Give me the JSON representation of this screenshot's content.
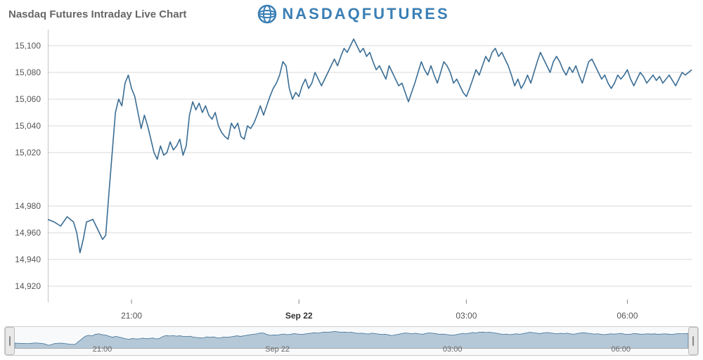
{
  "header": {
    "title": "Nasdaq Futures Intraday Live Chart",
    "brand": "NASDAQFUTURES",
    "brand_color": "#3a7fb5"
  },
  "chart": {
    "type": "line",
    "line_color": "#3a6d94",
    "line_width": 1.6,
    "background_color": "#ffffff",
    "grid_color": "#d9d9d9",
    "axis_color": "#888888",
    "label_color": "#555555",
    "label_fontsize": 12,
    "ylim": [
      14910,
      15110
    ],
    "yticks": [
      14920,
      14940,
      14960,
      14980,
      15020,
      15040,
      15060,
      15080,
      15100
    ],
    "ytick_labels": [
      "14,920",
      "14,940",
      "14,960",
      "14,980",
      "15,020",
      "15,040",
      "15,060",
      "15,080",
      "15,100"
    ],
    "xlim": [
      0,
      100
    ],
    "xticks": [
      13,
      39,
      65,
      90
    ],
    "xtick_labels": [
      "21:00",
      "Sep 22",
      "03:00",
      "06:00"
    ],
    "xtick_bold": [
      false,
      true,
      false,
      false
    ],
    "series": [
      [
        0,
        14970
      ],
      [
        1,
        14968
      ],
      [
        2,
        14965
      ],
      [
        3,
        14972
      ],
      [
        4,
        14968
      ],
      [
        4.5,
        14960
      ],
      [
        5,
        14945
      ],
      [
        5.5,
        14955
      ],
      [
        6,
        14968
      ],
      [
        7,
        14970
      ],
      [
        7.5,
        14965
      ],
      [
        8,
        14960
      ],
      [
        8.5,
        14955
      ],
      [
        9,
        14958
      ],
      [
        9.5,
        14990
      ],
      [
        10,
        15020
      ],
      [
        10.5,
        15050
      ],
      [
        11,
        15060
      ],
      [
        11.5,
        15055
      ],
      [
        12,
        15072
      ],
      [
        12.5,
        15078
      ],
      [
        13,
        15068
      ],
      [
        13.5,
        15062
      ],
      [
        14,
        15050
      ],
      [
        14.5,
        15038
      ],
      [
        15,
        15048
      ],
      [
        15.5,
        15040
      ],
      [
        16,
        15030
      ],
      [
        16.5,
        15020
      ],
      [
        17,
        15015
      ],
      [
        17.5,
        15025
      ],
      [
        18,
        15018
      ],
      [
        18.5,
        15020
      ],
      [
        19,
        15028
      ],
      [
        19.5,
        15022
      ],
      [
        20,
        15025
      ],
      [
        20.5,
        15030
      ],
      [
        21,
        15018
      ],
      [
        21.5,
        15025
      ],
      [
        22,
        15048
      ],
      [
        22.5,
        15058
      ],
      [
        23,
        15052
      ],
      [
        23.5,
        15057
      ],
      [
        24,
        15050
      ],
      [
        24.5,
        15055
      ],
      [
        25,
        15048
      ],
      [
        25.5,
        15045
      ],
      [
        26,
        15050
      ],
      [
        26.5,
        15040
      ],
      [
        27,
        15035
      ],
      [
        27.5,
        15032
      ],
      [
        28,
        15030
      ],
      [
        28.5,
        15042
      ],
      [
        29,
        15038
      ],
      [
        29.5,
        15042
      ],
      [
        30,
        15032
      ],
      [
        30.5,
        15030
      ],
      [
        31,
        15040
      ],
      [
        31.5,
        15038
      ],
      [
        32,
        15042
      ],
      [
        32.5,
        15048
      ],
      [
        33,
        15055
      ],
      [
        33.5,
        15048
      ],
      [
        34,
        15055
      ],
      [
        34.5,
        15062
      ],
      [
        35,
        15068
      ],
      [
        35.5,
        15072
      ],
      [
        36,
        15078
      ],
      [
        36.5,
        15088
      ],
      [
        37,
        15085
      ],
      [
        37.5,
        15068
      ],
      [
        38,
        15060
      ],
      [
        38.5,
        15065
      ],
      [
        39,
        15062
      ],
      [
        39.5,
        15070
      ],
      [
        40,
        15075
      ],
      [
        40.5,
        15068
      ],
      [
        41,
        15072
      ],
      [
        41.5,
        15080
      ],
      [
        42,
        15075
      ],
      [
        42.5,
        15070
      ],
      [
        43,
        15075
      ],
      [
        43.5,
        15080
      ],
      [
        44,
        15085
      ],
      [
        44.5,
        15090
      ],
      [
        45,
        15085
      ],
      [
        45.5,
        15092
      ],
      [
        46,
        15098
      ],
      [
        46.5,
        15095
      ],
      [
        47,
        15100
      ],
      [
        47.5,
        15105
      ],
      [
        48,
        15100
      ],
      [
        48.5,
        15095
      ],
      [
        49,
        15098
      ],
      [
        49.5,
        15092
      ],
      [
        50,
        15095
      ],
      [
        50.5,
        15088
      ],
      [
        51,
        15082
      ],
      [
        51.5,
        15085
      ],
      [
        52,
        15080
      ],
      [
        52.5,
        15075
      ],
      [
        53,
        15085
      ],
      [
        53.5,
        15080
      ],
      [
        54,
        15075
      ],
      [
        54.5,
        15070
      ],
      [
        55,
        15072
      ],
      [
        55.5,
        15065
      ],
      [
        56,
        15058
      ],
      [
        56.5,
        15065
      ],
      [
        57,
        15072
      ],
      [
        57.5,
        15080
      ],
      [
        58,
        15088
      ],
      [
        58.5,
        15082
      ],
      [
        59,
        15078
      ],
      [
        59.5,
        15085
      ],
      [
        60,
        15078
      ],
      [
        60.5,
        15072
      ],
      [
        61,
        15080
      ],
      [
        61.5,
        15088
      ],
      [
        62,
        15085
      ],
      [
        62.5,
        15080
      ],
      [
        63,
        15072
      ],
      [
        63.5,
        15075
      ],
      [
        64,
        15070
      ],
      [
        64.5,
        15065
      ],
      [
        65,
        15062
      ],
      [
        65.5,
        15068
      ],
      [
        66,
        15075
      ],
      [
        66.5,
        15082
      ],
      [
        67,
        15078
      ],
      [
        67.5,
        15085
      ],
      [
        68,
        15092
      ],
      [
        68.5,
        15088
      ],
      [
        69,
        15095
      ],
      [
        69.5,
        15098
      ],
      [
        70,
        15092
      ],
      [
        70.5,
        15095
      ],
      [
        71,
        15090
      ],
      [
        71.5,
        15085
      ],
      [
        72,
        15078
      ],
      [
        72.5,
        15070
      ],
      [
        73,
        15075
      ],
      [
        73.5,
        15068
      ],
      [
        74,
        15072
      ],
      [
        74.5,
        15078
      ],
      [
        75,
        15072
      ],
      [
        75.5,
        15080
      ],
      [
        76,
        15088
      ],
      [
        76.5,
        15095
      ],
      [
        77,
        15090
      ],
      [
        77.5,
        15085
      ],
      [
        78,
        15080
      ],
      [
        78.5,
        15088
      ],
      [
        79,
        15092
      ],
      [
        79.5,
        15088
      ],
      [
        80,
        15082
      ],
      [
        80.5,
        15078
      ],
      [
        81,
        15084
      ],
      [
        81.5,
        15080
      ],
      [
        82,
        15085
      ],
      [
        82.5,
        15078
      ],
      [
        83,
        15072
      ],
      [
        83.5,
        15080
      ],
      [
        84,
        15088
      ],
      [
        84.5,
        15090
      ],
      [
        85,
        15085
      ],
      [
        85.5,
        15080
      ],
      [
        86,
        15075
      ],
      [
        86.5,
        15078
      ],
      [
        87,
        15072
      ],
      [
        87.5,
        15068
      ],
      [
        88,
        15072
      ],
      [
        88.5,
        15078
      ],
      [
        89,
        15075
      ],
      [
        89.5,
        15078
      ],
      [
        90,
        15082
      ],
      [
        90.5,
        15075
      ],
      [
        91,
        15070
      ],
      [
        91.5,
        15075
      ],
      [
        92,
        15080
      ],
      [
        92.5,
        15077
      ],
      [
        93,
        15072
      ],
      [
        93.5,
        15075
      ],
      [
        94,
        15078
      ],
      [
        94.5,
        15074
      ],
      [
        95,
        15077
      ],
      [
        95.5,
        15072
      ],
      [
        96,
        15075
      ],
      [
        96.5,
        15078
      ],
      [
        97,
        15074
      ],
      [
        97.5,
        15070
      ],
      [
        98,
        15075
      ],
      [
        98.5,
        15080
      ],
      [
        99,
        15078
      ],
      [
        100,
        15082
      ]
    ]
  },
  "navigator": {
    "fill_color": "#3a6d94",
    "fill_opacity": 0.35,
    "stroke_color": "#3a6d94",
    "label_color": "#666666",
    "xtick_labels": [
      "21:00",
      "Sep 22",
      "03:00",
      "06:00"
    ],
    "xticks": [
      13,
      39,
      65,
      90
    ]
  }
}
